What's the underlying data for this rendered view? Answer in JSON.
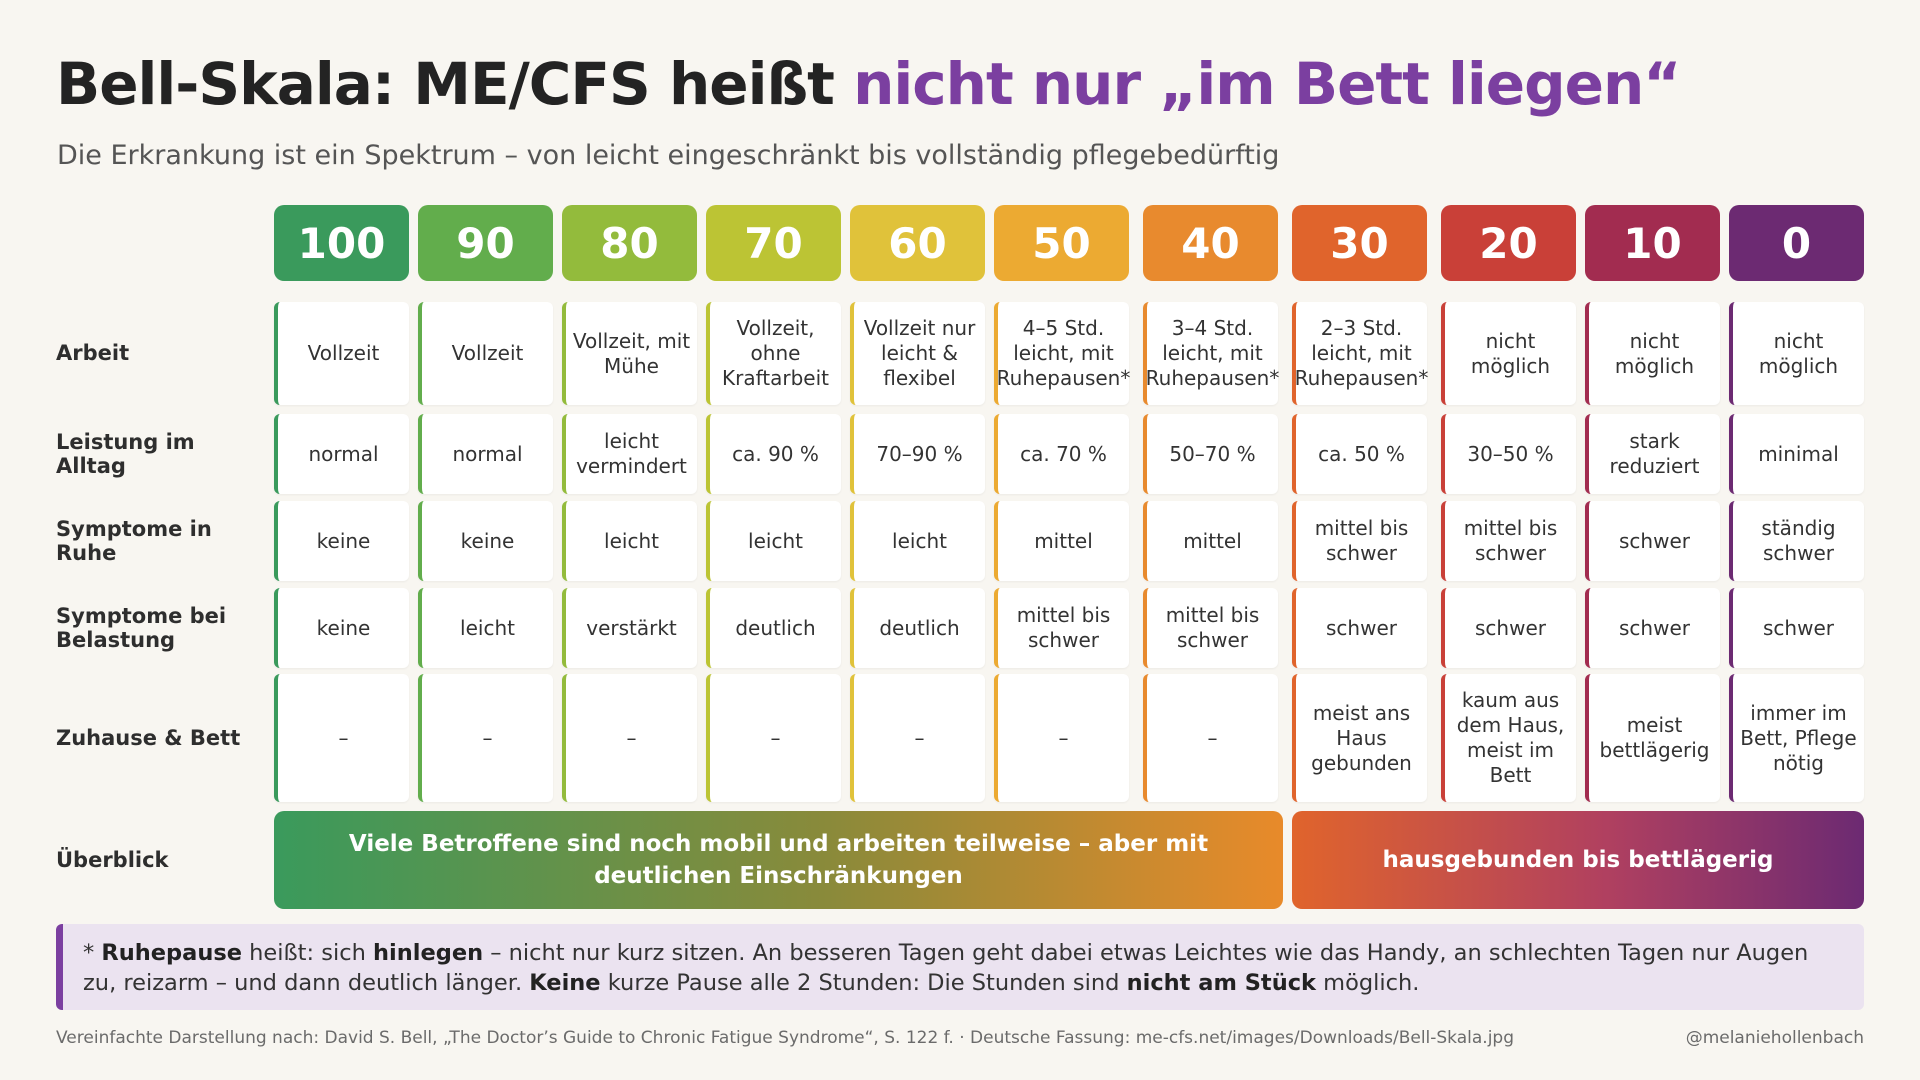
{
  "title": {
    "main": "Bell-Skala: ME/CFS heißt ",
    "accent": "nicht nur „im Bett liegen“"
  },
  "subtitle": "Die Erkrankung ist ein Spektrum – von leicht eingeschränkt bis vollständig pflegebedürftig",
  "columns": [
    {
      "label": "100",
      "color": "#3a9a5c"
    },
    {
      "label": "90",
      "color": "#62ad4c"
    },
    {
      "label": "80",
      "color": "#93bb3c"
    },
    {
      "label": "70",
      "color": "#bcc434"
    },
    {
      "label": "60",
      "color": "#e0c23a"
    },
    {
      "label": "50",
      "color": "#ecaa32"
    },
    {
      "label": "40",
      "color": "#e88a2e"
    },
    {
      "label": "30",
      "color": "#e0642c"
    },
    {
      "label": "20",
      "color": "#c94038"
    },
    {
      "label": "10",
      "color": "#a22c50"
    },
    {
      "label": "0",
      "color": "#6c2a72"
    }
  ],
  "rows": [
    {
      "label": "Arbeit",
      "cells": [
        "Vollzeit",
        "Vollzeit",
        "Vollzeit, mit Mühe",
        "Vollzeit, ohne Kraftarbeit",
        "Vollzeit nur leicht & flexibel",
        "4–5 Std. leicht, mit Ruhepausen*",
        "3–4 Std. leicht, mit Ruhepausen*",
        "2–3 Std. leicht, mit Ruhepausen*",
        "nicht möglich",
        "nicht möglich",
        "nicht möglich"
      ]
    },
    {
      "label": "Leistung im Alltag",
      "cells": [
        "normal",
        "normal",
        "leicht vermindert",
        "ca. 90 %",
        "70–90 %",
        "ca. 70 %",
        "50–70 %",
        "ca. 50 %",
        "30–50 %",
        "stark reduziert",
        "minimal"
      ]
    },
    {
      "label": "Symptome in Ruhe",
      "cells": [
        "keine",
        "keine",
        "leicht",
        "leicht",
        "leicht",
        "mittel",
        "mittel",
        "mittel bis schwer",
        "mittel bis schwer",
        "schwer",
        "ständig schwer"
      ]
    },
    {
      "label": "Symptome bei Belastung",
      "cells": [
        "keine",
        "leicht",
        "verstärkt",
        "deutlich",
        "deutlich",
        "mittel bis schwer",
        "mittel bis schwer",
        "schwer",
        "schwer",
        "schwer",
        "schwer"
      ]
    },
    {
      "label": "Zuhause & Bett",
      "cells": [
        "–",
        "–",
        "–",
        "–",
        "–",
        "–",
        "–",
        "meist ans Haus gebunden",
        "kaum aus dem Haus, meist im Bett",
        "meist bettlägerig",
        "immer im Bett, Pflege nötig"
      ]
    }
  ],
  "overview": {
    "label": "Überblick",
    "left": "Viele Betroffene sind noch mobil und arbeiten teilweise – aber mit deutlichen Einschränkungen",
    "right": "hausgebunden bis bettlägerig"
  },
  "note": {
    "t1": "* ",
    "b1": "Ruhepause",
    "t2": " heißt: sich ",
    "b2": "hinlegen",
    "t3": " – nicht nur kurz sitzen. An besseren Tagen geht dabei etwas Leichtes wie das Handy, an schlechten Tagen nur Augen zu, reizarm – und dann deutlich länger. ",
    "b3": "Keine",
    "t4": " kurze Pause alle 2 Stunden: Die Stunden sind ",
    "b4": "nicht am Stück",
    "t5": " möglich."
  },
  "footer": {
    "source": "Vereinfachte Darstellung nach: David S. Bell, „The Doctor’s Guide to Chronic Fatigue Syndrome“, S. 122 f. · Deutsche Fassung: me-cfs.net/images/Downloads/Bell-Skala.jpg",
    "handle": "@melaniehollenbach"
  }
}
